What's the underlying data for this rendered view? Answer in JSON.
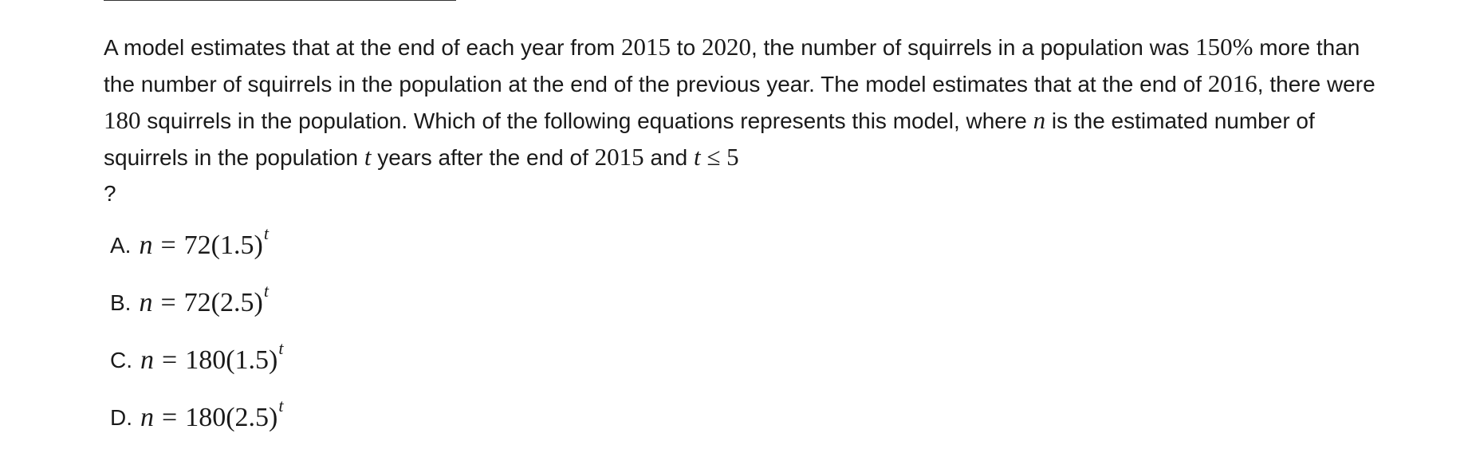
{
  "question": {
    "p1": "A model estimates that at the end of each year from ",
    "year_start": "2015",
    "p2": " to ",
    "year_end": "2020",
    "p3": ", the number of squirrels in a population was ",
    "percent": "150%",
    "p4": " more than the number of squirrels in the population at the end of the previous year. The model estimates that at the end of ",
    "year_known": "2016",
    "p5": ", there were ",
    "count": "180",
    "p6": " squirrels in the population. Which of the following equations represents this model, where ",
    "var_n": "n",
    "p7": " is the estimated number of squirrels in the population ",
    "var_t": "t",
    "p8": " years after the end of ",
    "year_base": "2015",
    "p9": " and ",
    "cond_var": "t",
    "cond_op": "≤",
    "cond_val": "5",
    "p10": " ?"
  },
  "choices": [
    {
      "letter": "A.",
      "var": "n",
      "eq": "=",
      "coef": "72",
      "base": "(1.5)",
      "exp": "t"
    },
    {
      "letter": "B.",
      "var": "n",
      "eq": "=",
      "coef": "72",
      "base": "(2.5)",
      "exp": "t"
    },
    {
      "letter": "C.",
      "var": "n",
      "eq": "=",
      "coef": "180",
      "base": "(1.5)",
      "exp": "t"
    },
    {
      "letter": "D.",
      "var": "n",
      "eq": "=",
      "coef": "180",
      "base": "(2.5)",
      "exp": "t"
    }
  ]
}
